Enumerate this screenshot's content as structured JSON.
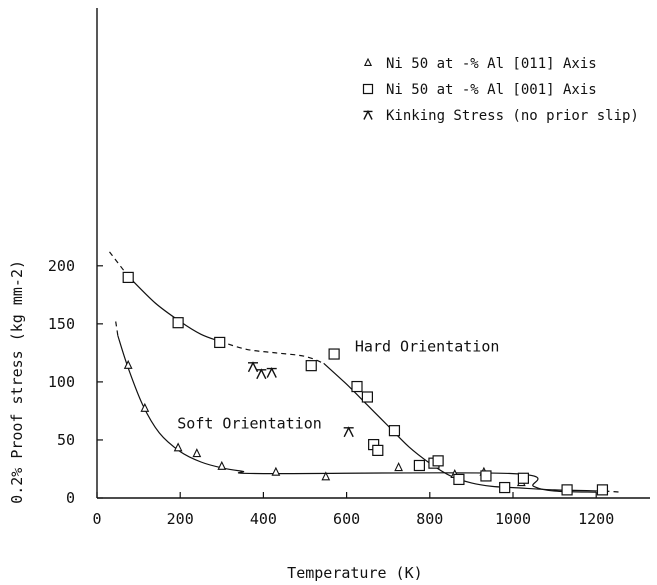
{
  "chart_data": {
    "type": "scatter",
    "xlabel": "Temperature (K)",
    "ylabel": "0.2% Proof stress (kg mm-2)",
    "xlim": [
      0,
      1300
    ],
    "ylim": [
      0,
      225
    ],
    "xticks": [
      0,
      200,
      400,
      600,
      800,
      1000,
      1200
    ],
    "yticks": [
      0,
      50,
      100,
      150,
      200
    ],
    "legend_position": "top-right",
    "series": [
      {
        "name": "Ni 50 at -% Al [011] Axis",
        "marker": "triangle",
        "points": [
          [
            75,
            114
          ],
          [
            115,
            77
          ],
          [
            195,
            43
          ],
          [
            240,
            38
          ],
          [
            300,
            27
          ],
          [
            430,
            22
          ],
          [
            550,
            18
          ],
          [
            725,
            26
          ],
          [
            860,
            20
          ],
          [
            930,
            22
          ],
          [
            1020,
            13
          ]
        ]
      },
      {
        "name": "Ni 50 at -% Al [001] Axis",
        "marker": "square",
        "points": [
          [
            75,
            190
          ],
          [
            195,
            151
          ],
          [
            295,
            134
          ],
          [
            515,
            114
          ],
          [
            570,
            124
          ],
          [
            625,
            96
          ],
          [
            650,
            87
          ],
          [
            715,
            58
          ],
          [
            665,
            46
          ],
          [
            675,
            41
          ],
          [
            775,
            28
          ],
          [
            810,
            30
          ],
          [
            820,
            32
          ],
          [
            870,
            16
          ],
          [
            935,
            19
          ],
          [
            980,
            9
          ],
          [
            1025,
            17
          ],
          [
            1130,
            7
          ],
          [
            1215,
            7
          ]
        ]
      },
      {
        "name": "Kinking Stress (no prior slip)",
        "marker": "kink",
        "points": [
          [
            375,
            113
          ],
          [
            395,
            107
          ],
          [
            420,
            108
          ],
          [
            605,
            57
          ]
        ]
      }
    ],
    "curves": [
      {
        "label": "Hard Orientation",
        "solid": [
          [
            75,
            191
          ],
          [
            140,
            168
          ],
          [
            200,
            152
          ],
          [
            250,
            141
          ],
          [
            295,
            135
          ]
        ],
        "dashed_before": [
          [
            30,
            212
          ],
          [
            75,
            191
          ]
        ],
        "dashed_mid": [
          [
            295,
            135
          ],
          [
            360,
            128
          ],
          [
            430,
            125
          ],
          [
            500,
            122
          ],
          [
            545,
            116
          ]
        ],
        "solid_after": [
          [
            545,
            116
          ],
          [
            600,
            98
          ],
          [
            650,
            80
          ],
          [
            700,
            62
          ],
          [
            750,
            44
          ],
          [
            800,
            30
          ],
          [
            850,
            19
          ],
          [
            900,
            13
          ],
          [
            950,
            10
          ],
          [
            1000,
            9
          ],
          [
            1100,
            7
          ],
          [
            1220,
            6
          ]
        ],
        "dashed_end": [
          [
            1220,
            6
          ],
          [
            1260,
            5
          ]
        ]
      },
      {
        "label": "Soft Orientation",
        "solid": [
          [
            50,
            140
          ],
          [
            75,
            112
          ],
          [
            110,
            80
          ],
          [
            150,
            56
          ],
          [
            200,
            40
          ],
          [
            250,
            31
          ],
          [
            300,
            26
          ],
          [
            350,
            23
          ],
          [
            400,
            21
          ],
          [
            1000,
            21
          ],
          [
            1050,
            10
          ],
          [
            1100,
            6
          ],
          [
            1200,
            5
          ]
        ],
        "dashed_before": [
          [
            45,
            152
          ],
          [
            50,
            140
          ]
        ]
      }
    ],
    "annotations": [
      "Hard Orientation",
      "Soft Orientation"
    ]
  }
}
